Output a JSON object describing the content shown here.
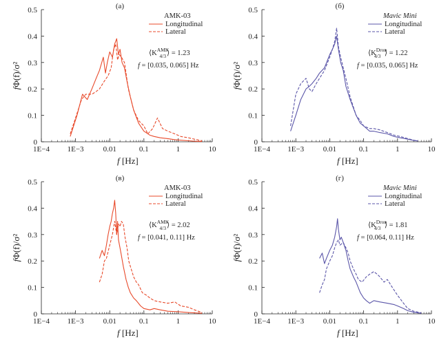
{
  "chart_data": [
    {
      "type": "line",
      "panel_label": "(а)",
      "legend_title": "AMK-03",
      "legend_title_italic": false,
      "legend_placement": "top-right",
      "xlabel": "f [Hz]",
      "ylabel": "fΦ(f)/σ²",
      "xscale": "log",
      "xlim": [
        0.0001,
        10
      ],
      "ylim": [
        0,
        0.5
      ],
      "x_ticks": [
        "1E−4",
        "1E−3",
        "0.01",
        "0.1",
        "1",
        "10"
      ],
      "y_ticks": [
        "0",
        "0.1",
        "0.2",
        "0.3",
        "0.4",
        "0.5"
      ],
      "annotation_k": {
        "prefix": "⟨K",
        "sup": "AMK",
        "sub": "4/3",
        "suffix": "⟩ = 1.23"
      },
      "annotation_range": "f = [0.035, 0.065] Hz",
      "series_color": "#e8492a",
      "series": [
        {
          "name": "Longitudinal",
          "style": "solid",
          "x": [
            0.0007,
            0.0011,
            0.0016,
            0.0022,
            0.003,
            0.004,
            0.005,
            0.0065,
            0.0075,
            0.0085,
            0.01,
            0.012,
            0.014,
            0.016,
            0.018,
            0.02,
            0.023,
            0.027,
            0.033,
            0.04,
            0.05,
            0.07,
            0.1,
            0.15,
            0.2,
            0.3,
            0.5,
            0.8,
            1.2,
            2,
            3,
            5
          ],
          "y": [
            0.02,
            0.1,
            0.18,
            0.16,
            0.2,
            0.24,
            0.27,
            0.32,
            0.26,
            0.3,
            0.34,
            0.32,
            0.37,
            0.39,
            0.33,
            0.35,
            0.3,
            0.28,
            0.22,
            0.17,
            0.12,
            0.07,
            0.04,
            0.025,
            0.02,
            0.015,
            0.012,
            0.008,
            0.006,
            0.004,
            0.002,
            0.001
          ]
        },
        {
          "name": "Lateral",
          "style": "dashed",
          "x": [
            0.0007,
            0.001,
            0.0015,
            0.002,
            0.003,
            0.004,
            0.005,
            0.007,
            0.009,
            0.011,
            0.013,
            0.015,
            0.017,
            0.019,
            0.022,
            0.027,
            0.035,
            0.05,
            0.07,
            0.1,
            0.13,
            0.18,
            0.25,
            0.35,
            0.5,
            0.8,
            1.2,
            2,
            3,
            5
          ],
          "y": [
            0.03,
            0.09,
            0.16,
            0.18,
            0.18,
            0.19,
            0.2,
            0.23,
            0.25,
            0.28,
            0.35,
            0.37,
            0.31,
            0.33,
            0.32,
            0.3,
            0.2,
            0.12,
            0.08,
            0.06,
            0.03,
            0.05,
            0.09,
            0.05,
            0.04,
            0.03,
            0.02,
            0.015,
            0.01,
            0.004
          ]
        }
      ]
    },
    {
      "type": "line",
      "panel_label": "(б)",
      "legend_title": "Mavic Mini",
      "legend_title_italic": true,
      "legend_placement": "top-right",
      "xlabel": "f [Hz]",
      "ylabel": "fΦ(f)/σ²",
      "xscale": "log",
      "xlim": [
        0.0001,
        10
      ],
      "ylim": [
        0,
        0.5
      ],
      "x_ticks": [
        "1E−4",
        "1E−3",
        "0.01",
        "0.1",
        "1",
        "10"
      ],
      "y_ticks": [
        "0",
        "0.1",
        "0.2",
        "0.3",
        "0.4",
        "0.5"
      ],
      "annotation_k": {
        "prefix": "⟨K",
        "sup": "Dron",
        "sub": "4/3",
        "suffix": "⟩ = 1.22"
      },
      "annotation_range": "f = [0.035, 0.065] Hz",
      "series_color": "#5a55a8",
      "series": [
        {
          "name": "Longitudinal",
          "style": "solid",
          "x": [
            0.0007,
            0.001,
            0.0014,
            0.002,
            0.0025,
            0.003,
            0.004,
            0.005,
            0.007,
            0.01,
            0.012,
            0.014,
            0.016,
            0.018,
            0.021,
            0.025,
            0.03,
            0.04,
            0.06,
            0.08,
            0.1,
            0.15,
            0.2,
            0.3,
            0.5,
            0.8,
            1.2,
            2,
            3,
            4
          ],
          "y": [
            0.04,
            0.1,
            0.16,
            0.2,
            0.21,
            0.22,
            0.24,
            0.26,
            0.28,
            0.33,
            0.35,
            0.37,
            0.4,
            0.35,
            0.3,
            0.27,
            0.21,
            0.16,
            0.1,
            0.07,
            0.06,
            0.04,
            0.04,
            0.035,
            0.03,
            0.02,
            0.015,
            0.01,
            0.005,
            0.003
          ]
        },
        {
          "name": "Lateral",
          "style": "dashed",
          "x": [
            0.0007,
            0.001,
            0.0014,
            0.002,
            0.0025,
            0.003,
            0.004,
            0.005,
            0.007,
            0.01,
            0.012,
            0.014,
            0.016,
            0.018,
            0.021,
            0.025,
            0.03,
            0.04,
            0.06,
            0.08,
            0.1,
            0.15,
            0.2,
            0.3,
            0.5,
            0.8,
            1.2,
            2,
            3,
            4
          ],
          "y": [
            0.06,
            0.18,
            0.22,
            0.24,
            0.2,
            0.19,
            0.22,
            0.24,
            0.27,
            0.32,
            0.35,
            0.38,
            0.43,
            0.36,
            0.32,
            0.28,
            0.24,
            0.17,
            0.1,
            0.08,
            0.06,
            0.05,
            0.05,
            0.045,
            0.035,
            0.025,
            0.02,
            0.012,
            0.006,
            0.003
          ]
        }
      ]
    },
    {
      "type": "line",
      "panel_label": "(в)",
      "legend_title": "AMK-03",
      "legend_title_italic": false,
      "legend_placement": "top-right",
      "xlabel": "f [Hz]",
      "ylabel": "fΦ(f)/σ²",
      "xscale": "log",
      "xlim": [
        0.0001,
        10
      ],
      "ylim": [
        0,
        0.5
      ],
      "x_ticks": [
        "1E−4",
        "1E−3",
        "0.01",
        "0.1",
        "1",
        "10"
      ],
      "y_ticks": [
        "0",
        "0.1",
        "0.2",
        "0.3",
        "0.4",
        "0.5"
      ],
      "annotation_k": {
        "prefix": "⟨K",
        "sup": "AMK",
        "sub": "4/3",
        "suffix": "⟩ = 2.02"
      },
      "annotation_range": "f = [0.041, 0.11] Hz",
      "series_color": "#e8492a",
      "series": [
        {
          "name": "Longitudinal",
          "style": "solid",
          "x": [
            0.005,
            0.006,
            0.007,
            0.008,
            0.009,
            0.01,
            0.011,
            0.012,
            0.013,
            0.014,
            0.015,
            0.016,
            0.017,
            0.018,
            0.02,
            0.022,
            0.025,
            0.03,
            0.035,
            0.04,
            0.05,
            0.06,
            0.08,
            0.1,
            0.15,
            0.2,
            0.3,
            0.5,
            1,
            2,
            5
          ],
          "y": [
            0.21,
            0.24,
            0.22,
            0.26,
            0.3,
            0.33,
            0.35,
            0.38,
            0.4,
            0.43,
            0.38,
            0.3,
            0.35,
            0.28,
            0.25,
            0.22,
            0.18,
            0.13,
            0.1,
            0.08,
            0.06,
            0.05,
            0.03,
            0.02,
            0.015,
            0.02,
            0.015,
            0.01,
            0.008,
            0.005,
            0.002
          ]
        },
        {
          "name": "Lateral",
          "style": "dashed",
          "x": [
            0.005,
            0.006,
            0.007,
            0.008,
            0.01,
            0.012,
            0.014,
            0.016,
            0.018,
            0.02,
            0.022,
            0.025,
            0.028,
            0.032,
            0.036,
            0.04,
            0.05,
            0.06,
            0.07,
            0.09,
            0.12,
            0.15,
            0.2,
            0.3,
            0.5,
            0.8,
            1.2,
            2,
            3,
            5
          ],
          "y": [
            0.12,
            0.15,
            0.2,
            0.21,
            0.26,
            0.3,
            0.35,
            0.3,
            0.34,
            0.33,
            0.35,
            0.34,
            0.29,
            0.25,
            0.2,
            0.18,
            0.14,
            0.12,
            0.11,
            0.08,
            0.07,
            0.06,
            0.05,
            0.045,
            0.04,
            0.045,
            0.03,
            0.025,
            0.015,
            0.005
          ]
        }
      ]
    },
    {
      "type": "line",
      "panel_label": "(г)",
      "legend_title": "Mavic Mini",
      "legend_title_italic": true,
      "legend_placement": "top-right",
      "xlabel": "f [Hz]",
      "ylabel": "fΦ(f)/σ²",
      "xscale": "log",
      "xlim": [
        0.0001,
        10
      ],
      "ylim": [
        0,
        0.5
      ],
      "x_ticks": [
        "1E−4",
        "1E−3",
        "0.01",
        "0.1",
        "1",
        "10"
      ],
      "y_ticks": [
        "0",
        "0.1",
        "0.2",
        "0.3",
        "0.4",
        "0.5"
      ],
      "annotation_k": {
        "prefix": "⟨K",
        "sup": "Dron",
        "sub": "4/3",
        "suffix": "⟩ = 1.81"
      },
      "annotation_range": "f = [0.064, 0.11] Hz",
      "series_color": "#5a55a8",
      "series": [
        {
          "name": "Longitudinal",
          "style": "solid",
          "x": [
            0.005,
            0.006,
            0.007,
            0.008,
            0.01,
            0.012,
            0.014,
            0.016,
            0.017,
            0.018,
            0.02,
            0.022,
            0.025,
            0.03,
            0.035,
            0.04,
            0.05,
            0.06,
            0.08,
            0.1,
            0.12,
            0.15,
            0.2,
            0.3,
            0.5,
            0.8,
            1,
            1.5,
            2,
            3,
            5
          ],
          "y": [
            0.21,
            0.23,
            0.19,
            0.21,
            0.24,
            0.26,
            0.29,
            0.33,
            0.36,
            0.32,
            0.28,
            0.29,
            0.27,
            0.24,
            0.2,
            0.17,
            0.14,
            0.12,
            0.08,
            0.06,
            0.05,
            0.04,
            0.05,
            0.045,
            0.04,
            0.035,
            0.03,
            0.02,
            0.012,
            0.006,
            0.002
          ]
        },
        {
          "name": "Lateral",
          "style": "dashed",
          "x": [
            0.005,
            0.006,
            0.007,
            0.008,
            0.01,
            0.012,
            0.014,
            0.016,
            0.018,
            0.02,
            0.025,
            0.03,
            0.035,
            0.04,
            0.05,
            0.06,
            0.07,
            0.09,
            0.12,
            0.15,
            0.2,
            0.25,
            0.3,
            0.4,
            0.5,
            0.7,
            1,
            1.5,
            2,
            3,
            5
          ],
          "y": [
            0.08,
            0.11,
            0.13,
            0.17,
            0.2,
            0.22,
            0.25,
            0.27,
            0.28,
            0.26,
            0.27,
            0.25,
            0.23,
            0.2,
            0.17,
            0.15,
            0.13,
            0.12,
            0.14,
            0.15,
            0.16,
            0.15,
            0.14,
            0.12,
            0.13,
            0.1,
            0.07,
            0.04,
            0.02,
            0.01,
            0.004
          ]
        }
      ]
    }
  ]
}
